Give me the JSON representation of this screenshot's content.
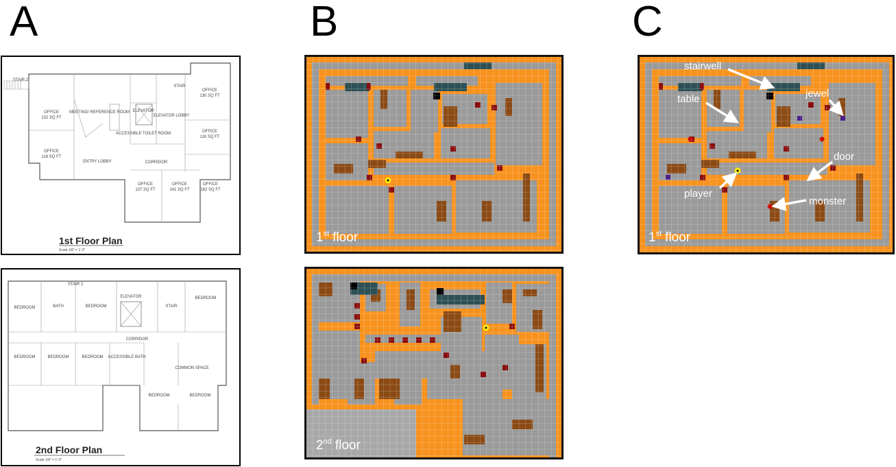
{
  "panels": {
    "a": "A",
    "b": "B",
    "c": "C"
  },
  "plan1": {
    "title": "1st Floor Plan",
    "scale": "Scale 1/8\" = 1'-0\"",
    "rooms": [
      "OFFICE",
      "132 SQ FT",
      "OFFICE",
      "118 SQ FT",
      "MEETING/ REFERENCE ROOM",
      "ELEVATOR",
      "ELEVATOR LOBBY",
      "STAIR",
      "OFFICE",
      "130 SQ FT",
      "OFFICE",
      "116 SQ FT",
      "ACCESSIBLE TOILET ROOM",
      "ENTRY LOBBY",
      "CORRIDOR",
      "OFFICE",
      "137 SQ FT",
      "OFFICE",
      "141 SQ FT",
      "OFFICE",
      "162 SQ FT",
      "STAIR 2"
    ]
  },
  "plan2": {
    "title": "2nd Floor Plan",
    "scale": "Scale 1/8\" = 1'-0\"",
    "rooms": [
      "BEDROOM",
      "BATH",
      "BEDROOM",
      "ELEVATOR",
      "STAIR",
      "BEDROOM",
      "CORRIDOR",
      "BEDROOM",
      "BEDROOM",
      "BEDROOM",
      "ACCESSIBLE BATH",
      "COMMON SPACE",
      "BEDROOM",
      "BEDROOM",
      "STAIR 2"
    ]
  },
  "map1": {
    "ordinal": "1",
    "suffix": "st",
    "word": "floor"
  },
  "map2": {
    "ordinal": "2",
    "suffix": "nd",
    "word": "floor"
  },
  "map3": {
    "ordinal": "1",
    "suffix": "st",
    "word": "floor"
  },
  "annotations": [
    "stairwell",
    "table",
    "jewel",
    "door",
    "player",
    "monster"
  ]
}
